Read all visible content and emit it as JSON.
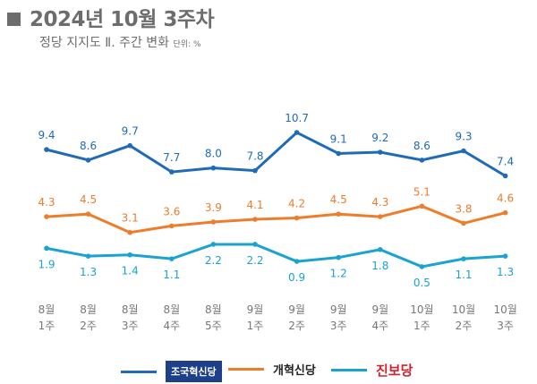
{
  "title": "2024년 10월 3주차",
  "subtitle": "정당 지지도 Ⅱ. 주간 변화",
  "unit": "단위: %",
  "chart_data": {
    "type": "line",
    "categories": [
      [
        "8월",
        "1주"
      ],
      [
        "8월",
        "2주"
      ],
      [
        "8월",
        "3주"
      ],
      [
        "8월",
        "4주"
      ],
      [
        "8월",
        "5주"
      ],
      [
        "9월",
        "1주"
      ],
      [
        "9월",
        "2주"
      ],
      [
        "9월",
        "3주"
      ],
      [
        "9월",
        "4주"
      ],
      [
        "10월",
        "1주"
      ],
      [
        "10월",
        "2주"
      ],
      [
        "10월",
        "3주"
      ]
    ],
    "series": [
      {
        "name": "조국혁신당",
        "color": "#1f6bb8",
        "label_pos": "above",
        "values": [
          9.4,
          8.6,
          9.7,
          7.7,
          8.0,
          7.8,
          10.7,
          9.1,
          9.2,
          8.6,
          9.3,
          7.4
        ]
      },
      {
        "name": "개혁신당",
        "color": "#ee7d2b",
        "label_pos": "above",
        "values": [
          4.3,
          4.5,
          3.1,
          3.6,
          3.9,
          4.1,
          4.2,
          4.5,
          4.3,
          5.1,
          3.8,
          4.6
        ]
      },
      {
        "name": "진보당",
        "color": "#1aa3d1",
        "label_pos": "below",
        "values": [
          1.9,
          1.3,
          1.4,
          1.1,
          2.2,
          2.2,
          0.9,
          1.2,
          1.8,
          0.5,
          1.1,
          1.3
        ]
      }
    ],
    "legend": "bottom",
    "grid": false
  }
}
